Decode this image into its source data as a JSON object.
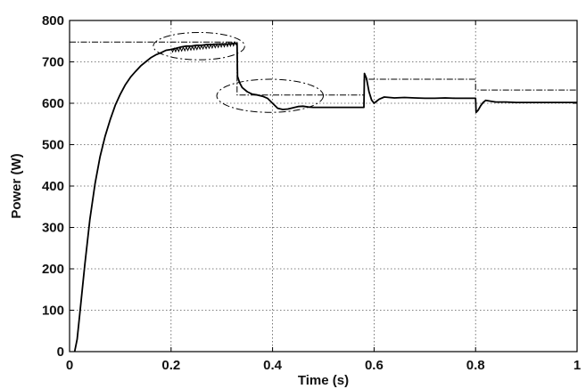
{
  "chart_data": {
    "type": "line",
    "title": "",
    "xlabel": "Time (s)",
    "ylabel": "Power (W)",
    "xlim": [
      0,
      1
    ],
    "ylim": [
      0,
      800
    ],
    "xticks": [
      0,
      0.2,
      0.4,
      0.6,
      0.8,
      1
    ],
    "xtick_labels": [
      "0",
      "0.2",
      "0.4",
      "0.6",
      "0.8",
      "1"
    ],
    "yticks": [
      0,
      100,
      200,
      300,
      400,
      500,
      600,
      700,
      800
    ],
    "ytick_labels": [
      "0",
      "100",
      "200",
      "300",
      "400",
      "500",
      "600",
      "700",
      "800"
    ],
    "grid": true,
    "legend": "none",
    "series": [
      {
        "style": "solid",
        "color": "#000000",
        "x": [
          0.01,
          0.015,
          0.02,
          0.03,
          0.04,
          0.05,
          0.06,
          0.07,
          0.08,
          0.09,
          0.1,
          0.11,
          0.12,
          0.13,
          0.14,
          0.15,
          0.16,
          0.17,
          0.18,
          0.19,
          0.2,
          0.21,
          0.22,
          0.23,
          0.24,
          0.25,
          0.26,
          0.27,
          0.28,
          0.29,
          0.3,
          0.31,
          0.32,
          0.33,
          0.331,
          0.335,
          0.34,
          0.35,
          0.36,
          0.37,
          0.38,
          0.39,
          0.4,
          0.41,
          0.42,
          0.43,
          0.44,
          0.45,
          0.46,
          0.47,
          0.48,
          0.5,
          0.52,
          0.54,
          0.56,
          0.58,
          0.581,
          0.585,
          0.59,
          0.595,
          0.6,
          0.61,
          0.62,
          0.64,
          0.66,
          0.68,
          0.7,
          0.72,
          0.74,
          0.76,
          0.78,
          0.8,
          0.801,
          0.805,
          0.81,
          0.815,
          0.82,
          0.83,
          0.84,
          0.86,
          0.88,
          0.9,
          0.95,
          1.0
        ],
        "y": [
          0,
          30,
          90,
          210,
          320,
          405,
          470,
          520,
          560,
          595,
          622,
          645,
          663,
          677,
          690,
          700,
          710,
          717,
          722,
          728,
          730,
          733,
          736,
          738,
          738,
          740,
          740,
          742,
          742,
          743,
          743,
          743,
          744,
          745,
          665,
          650,
          638,
          628,
          622,
          620,
          617,
          612,
          600,
          588,
          585,
          586,
          589,
          592,
          593,
          591,
          590,
          590,
          590,
          590,
          590,
          590,
          672,
          660,
          628,
          608,
          600,
          610,
          615,
          613,
          614,
          613,
          612,
          612,
          613,
          612,
          612,
          612,
          578,
          583,
          594,
          602,
          607,
          605,
          603,
          603,
          602,
          602,
          602,
          602
        ]
      },
      {
        "style": "dash-dot",
        "color": "#000000",
        "x": [
          0,
          0.33,
          0.33,
          0.58,
          0.58,
          0.8,
          0.8,
          1.0
        ],
        "y": [
          748,
          748,
          620,
          620,
          658,
          658,
          632,
          632
        ]
      }
    ],
    "annotations": [
      {
        "shape": "ellipse",
        "style": "dash-dot",
        "cx": 0.255,
        "cy": 738,
        "rx": 0.09,
        "ry": 33
      },
      {
        "shape": "ellipse",
        "style": "dash-dot",
        "cx": 0.395,
        "cy": 618,
        "rx": 0.105,
        "ry": 40
      }
    ]
  }
}
